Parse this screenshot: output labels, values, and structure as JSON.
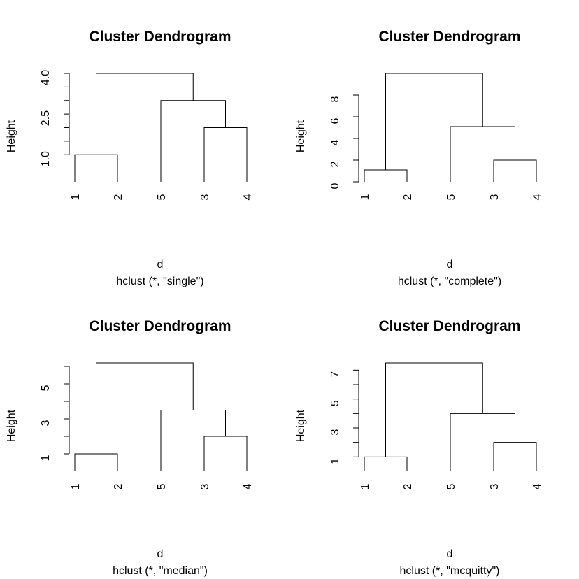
{
  "chart_data": [
    {
      "type": "dendrogram",
      "title": "Cluster Dendrogram",
      "xlabel": "d",
      "sub": "hclust (*, \"single\")",
      "ylabel": "Height",
      "ylim": [
        0,
        4.0
      ],
      "yticks": [
        1.0,
        1.5,
        2.0,
        2.5,
        3.0,
        3.5,
        4.0
      ],
      "ytick_labels": [
        "1.0",
        "",
        "",
        "2.5",
        "",
        "",
        "4.0"
      ],
      "leaves": [
        "1",
        "2",
        "5",
        "3",
        "4"
      ],
      "merges": [
        {
          "left": "1",
          "right": "2",
          "height": 1.0
        },
        {
          "left": "3",
          "right": "4",
          "height": 2.0
        },
        {
          "left": "5",
          "right": "3,4",
          "height": 3.0
        },
        {
          "left": "1,2",
          "right": "5,3,4",
          "height": 4.0
        }
      ]
    },
    {
      "type": "dendrogram",
      "title": "Cluster Dendrogram",
      "xlabel": "d",
      "sub": "hclust (*, \"complete\")",
      "ylabel": "Height",
      "ylim": [
        0,
        10
      ],
      "yticks": [
        0,
        2,
        4,
        6,
        8
      ],
      "ytick_labels": [
        "0",
        "2",
        "4",
        "6",
        "8"
      ],
      "leaves": [
        "1",
        "2",
        "5",
        "3",
        "4"
      ],
      "merges": [
        {
          "left": "1",
          "right": "2",
          "height": 1.1
        },
        {
          "left": "3",
          "right": "4",
          "height": 2.0
        },
        {
          "left": "5",
          "right": "3,4",
          "height": 5.1
        },
        {
          "left": "1,2",
          "right": "5,3,4",
          "height": 10.0
        }
      ]
    },
    {
      "type": "dendrogram",
      "title": "Cluster Dendrogram",
      "xlabel": "d",
      "sub": "hclust (*, \"median\")",
      "ylabel": "Height",
      "ylim": [
        0,
        6.2
      ],
      "yticks": [
        1,
        2,
        3,
        4,
        5,
        6
      ],
      "ytick_labels": [
        "1",
        "",
        "3",
        "",
        "5",
        ""
      ],
      "leaves": [
        "1",
        "2",
        "5",
        "3",
        "4"
      ],
      "merges": [
        {
          "left": "1",
          "right": "2",
          "height": 1.0
        },
        {
          "left": "3",
          "right": "4",
          "height": 2.0
        },
        {
          "left": "5",
          "right": "3,4",
          "height": 3.5
        },
        {
          "left": "1,2",
          "right": "5,3,4",
          "height": 6.2
        }
      ]
    },
    {
      "type": "dendrogram",
      "title": "Cluster Dendrogram",
      "xlabel": "d",
      "sub": "hclust (*, \"mcquitty\")",
      "ylabel": "Height",
      "ylim": [
        0,
        7.5
      ],
      "yticks": [
        1,
        2,
        3,
        4,
        5,
        6,
        7
      ],
      "ytick_labels": [
        "1",
        "",
        "3",
        "",
        "5",
        "",
        "7"
      ],
      "leaves": [
        "1",
        "2",
        "5",
        "3",
        "4"
      ],
      "merges": [
        {
          "left": "1",
          "right": "2",
          "height": 1.0
        },
        {
          "left": "3",
          "right": "4",
          "height": 2.0
        },
        {
          "left": "5",
          "right": "3,4",
          "height": 4.0
        },
        {
          "left": "1,2",
          "right": "5,3,4",
          "height": 7.5
        }
      ]
    }
  ]
}
